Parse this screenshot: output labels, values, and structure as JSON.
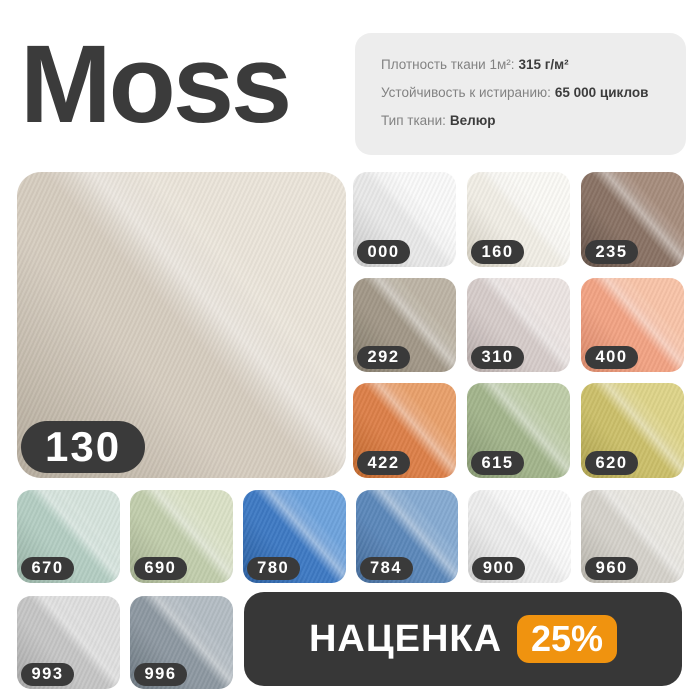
{
  "title": "Moss",
  "info_panel": {
    "rows": [
      {
        "label": "Плотность ткани 1м²:",
        "value": "315 г/м²"
      },
      {
        "label": "Устойчивость к истиранию:",
        "value": "65 000 циклов"
      },
      {
        "label": "Тип ткани:",
        "value": "Велюр"
      }
    ]
  },
  "badge": {
    "bg": "#3a3a3a",
    "text_color": "#ffffff"
  },
  "main": [
    {
      "code": "130",
      "base": "#d6cdc0",
      "light": "#ebe5da",
      "dark": "#c5bbab"
    }
  ],
  "right_grid": [
    {
      "code": "000",
      "base": "#e9e9e9",
      "light": "#fafafa",
      "dark": "#d8d8d8"
    },
    {
      "code": "160",
      "base": "#f1eee6",
      "light": "#fbfaf6",
      "dark": "#e2dccd"
    },
    {
      "code": "235",
      "base": "#8a7365",
      "light": "#a78d7d",
      "dark": "#6d594e"
    },
    {
      "code": "292",
      "base": "#a29888",
      "light": "#bdb4a5",
      "dark": "#8f8675"
    },
    {
      "code": "310",
      "base": "#d6ccca",
      "light": "#ece5e3",
      "dark": "#c3b7b5"
    },
    {
      "code": "400",
      "base": "#f2a384",
      "light": "#f9c4a9",
      "dark": "#eb9372"
    },
    {
      "code": "422",
      "base": "#dd8049",
      "light": "#e9a06b",
      "dark": "#d0702f"
    },
    {
      "code": "615",
      "base": "#a3b58c",
      "light": "#bfcda9",
      "dark": "#93a67c"
    },
    {
      "code": "620",
      "base": "#ccc06a",
      "light": "#ded489",
      "dark": "#bcaf55"
    }
  ],
  "bottom_grid": [
    {
      "code": "670",
      "base": "#b4cec3",
      "light": "#d6e4dd",
      "dark": "#a3c0b2"
    },
    {
      "code": "690",
      "base": "#c2cead",
      "light": "#dbe2c7",
      "dark": "#b0bd9a"
    },
    {
      "code": "780",
      "base": "#3e7ac4",
      "light": "#6ea3dd",
      "dark": "#2f66ab"
    },
    {
      "code": "784",
      "base": "#5c88ba",
      "light": "#86abd2",
      "dark": "#4a74a6"
    },
    {
      "code": "900",
      "base": "#ededed",
      "light": "#fbfbfb",
      "dark": "#dedede"
    },
    {
      "code": "960",
      "base": "#d5d2cb",
      "light": "#e9e7e1",
      "dark": "#c5c1b8"
    }
  ],
  "last_row": [
    {
      "code": "993",
      "base": "#c6c6c6",
      "light": "#dfdfdf",
      "dark": "#b5b5b5"
    },
    {
      "code": "996",
      "base": "#8e99a2",
      "light": "#b4bdc4",
      "dark": "#75818b"
    }
  ],
  "markup": {
    "label": "НАЦЕНКА",
    "value": "25%",
    "accent": "#f0930f",
    "bar_bg": "#373737"
  }
}
